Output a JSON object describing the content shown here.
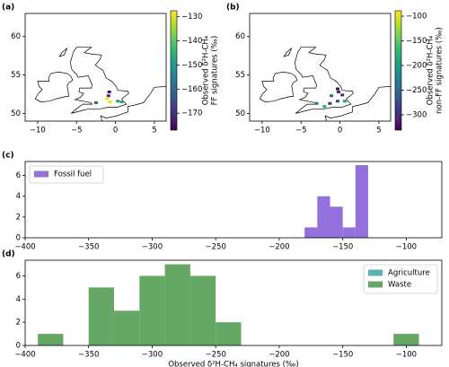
{
  "chart_data": [
    {
      "type": "map",
      "panel_label": "(a)",
      "xlim": [
        -11.6,
        6.5
      ],
      "ylim": [
        49,
        63
      ],
      "xticks": [
        {
          "value": -10,
          "label": "−10"
        },
        {
          "value": -5,
          "label": "−5"
        },
        0,
        5
      ],
      "yticks": [
        50,
        55,
        60
      ],
      "points": {
        "lon": [
          -0.8,
          -0.9,
          -1.1,
          -0.7,
          0.3,
          0.8,
          -2.5
        ],
        "lat": [
          52.8,
          52.3,
          51.9,
          51.5,
          51.6,
          51.5,
          51.4
        ],
        "values": [
          -175,
          -172,
          -128,
          -130,
          -150,
          -148,
          -160
        ]
      },
      "colormap": "viridis",
      "colorbar_lim": [
        -177,
        -127.5
      ],
      "colorbar_ticks": [
        {
          "value": -130,
          "label": "−130"
        },
        {
          "value": -140,
          "label": "−140"
        },
        {
          "value": -150,
          "label": "−150"
        },
        {
          "value": -160,
          "label": "−160"
        },
        {
          "value": -170,
          "label": "−170"
        }
      ],
      "colorbar_label": [
        "Observed δ²H-CH₄",
        "FF signatures (‰)"
      ]
    },
    {
      "type": "map",
      "panel_label": "(b)",
      "xlim": [
        -11.6,
        6.5
      ],
      "ylim": [
        49,
        63
      ],
      "xticks": [
        {
          "value": -10,
          "label": "−10"
        },
        {
          "value": -5,
          "label": "−5"
        },
        0,
        5
      ],
      "yticks": [
        50,
        55,
        60
      ],
      "points": {
        "lon": [
          -0.3,
          -0.2,
          -1.1,
          0.3,
          -0.3,
          0.6,
          -1.3,
          -3.0,
          -2.0
        ],
        "lat": [
          53.2,
          52.8,
          52.3,
          52.4,
          51.6,
          51.6,
          51.3,
          51.3,
          50.9
        ],
        "values": [
          -320,
          -310,
          -250,
          -300,
          -280,
          -200,
          -300,
          -240,
          -190
        ]
      },
      "colormap": "viridis",
      "colorbar_lim": [
        -331,
        -89
      ],
      "colorbar_ticks": [
        {
          "value": -100,
          "label": "−100"
        },
        {
          "value": -150,
          "label": "−150"
        },
        {
          "value": -200,
          "label": "−200"
        },
        {
          "value": -250,
          "label": "−250"
        },
        {
          "value": -300,
          "label": "−300"
        }
      ],
      "colorbar_label": [
        "Observed δ²H-CH₄",
        "non-FF signatures (‰)"
      ]
    },
    {
      "type": "histogram",
      "panel_label": "(c)",
      "xlim": [
        -400,
        -72
      ],
      "ylim": [
        0,
        7.35
      ],
      "xticks": [
        {
          "value": -400,
          "label": "−400"
        },
        {
          "value": -350,
          "label": "−350"
        },
        {
          "value": -300,
          "label": "−300"
        },
        {
          "value": -250,
          "label": "−250"
        },
        {
          "value": -200,
          "label": "−200"
        },
        {
          "value": -150,
          "label": "−150"
        },
        {
          "value": -100,
          "label": "−100"
        }
      ],
      "yticks": [
        0,
        2,
        4,
        6
      ],
      "legend": "upper left",
      "bins": [
        -180,
        -170,
        -160,
        -150,
        -140,
        -130
      ],
      "series": [
        {
          "name": "Fossil fuel",
          "color": "#9370db",
          "values": [
            1,
            4,
            3,
            1,
            7
          ]
        }
      ]
    },
    {
      "type": "histogram",
      "panel_label": "(d)",
      "xlim": [
        -400,
        -72
      ],
      "ylim": [
        0,
        7.35
      ],
      "xticks": [
        {
          "value": -400,
          "label": "−400"
        },
        {
          "value": -350,
          "label": "−350"
        },
        {
          "value": -300,
          "label": "−300"
        },
        {
          "value": -250,
          "label": "−250"
        },
        {
          "value": -200,
          "label": "−200"
        },
        {
          "value": -150,
          "label": "−150"
        },
        {
          "value": -100,
          "label": "−100"
        }
      ],
      "yticks": [
        0,
        2,
        4,
        6
      ],
      "legend": "upper right",
      "xlabel": "Observed δ²H-CH₄ signatures (‰)",
      "bins": [
        -390,
        -370,
        -350,
        -330,
        -310,
        -290,
        -270,
        -250,
        -230,
        -210,
        -190,
        -170,
        -150,
        -130,
        -110,
        -90
      ],
      "series": [
        {
          "name": "Agriculture",
          "color": "#5fb0b0",
          "values": [
            0,
            0,
            0,
            0,
            0,
            0,
            0,
            0,
            0,
            0,
            0,
            0,
            0,
            0,
            0
          ]
        },
        {
          "name": "Waste",
          "color": "#65a865",
          "values": [
            1,
            0,
            5,
            3,
            6,
            7,
            6,
            2,
            0,
            0,
            0,
            0,
            0,
            0,
            1
          ]
        }
      ]
    }
  ]
}
